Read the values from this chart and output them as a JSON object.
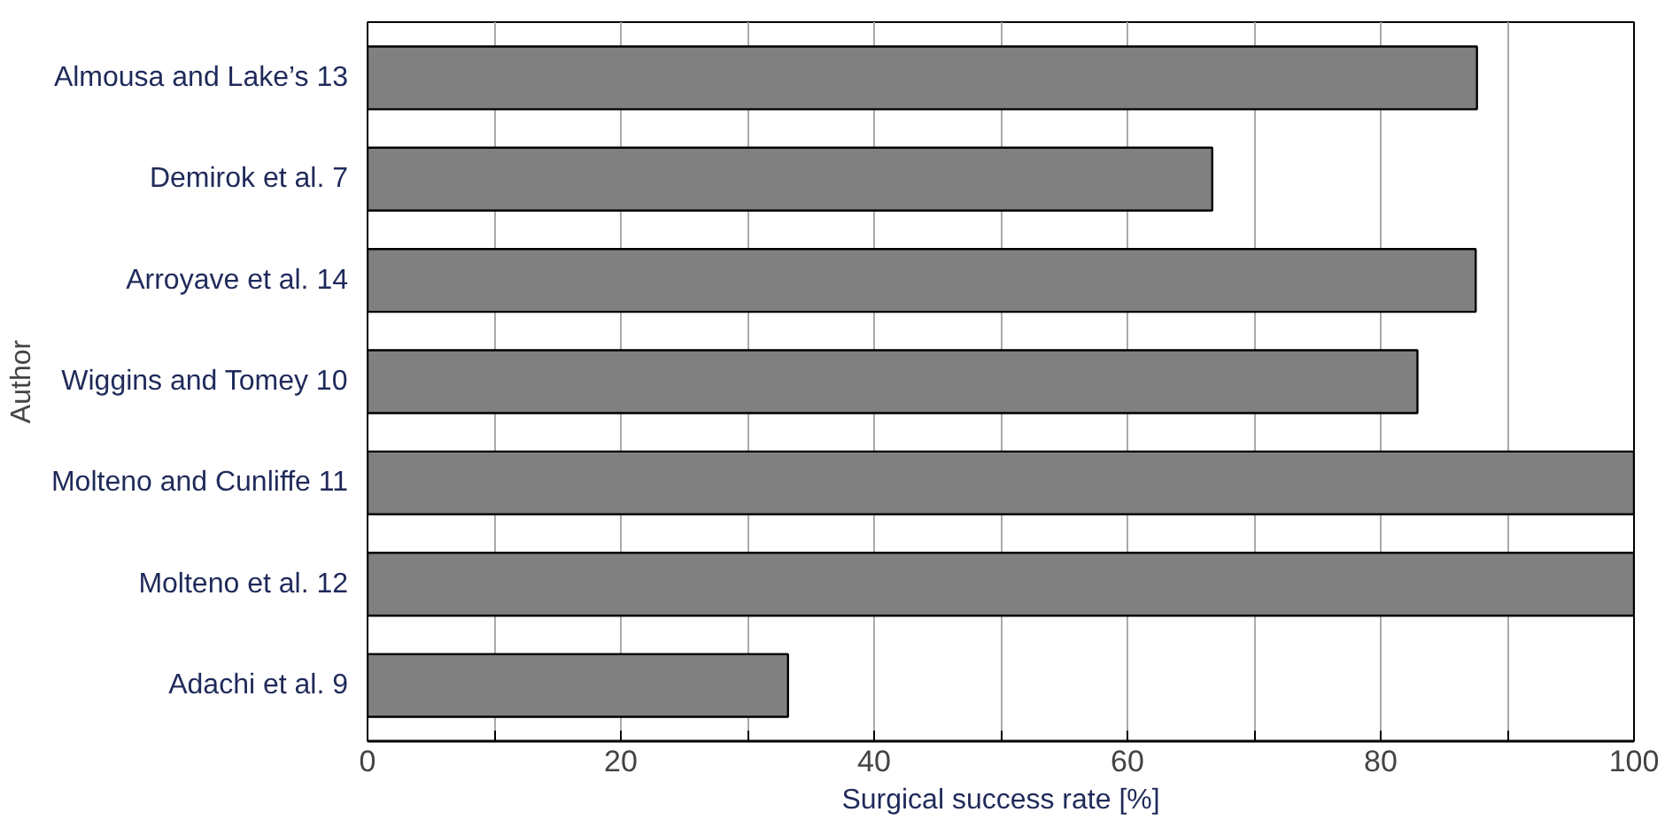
{
  "chart_data": {
    "type": "bar",
    "orientation": "horizontal",
    "categories": [
      "Almousa and Lake’s 13",
      "Demirok et al. 7",
      "Arroyave et al. 14",
      "Wiggins and Tomey 10",
      "Molteno and Cunliffe 11",
      "Molteno et al. 12",
      "Adachi et al. 9"
    ],
    "values": [
      87.6,
      66.7,
      87.5,
      82.9,
      100,
      100,
      33.2
    ],
    "color": "#808080",
    "xlim": [
      0,
      100
    ],
    "xticks": [
      0,
      {
        "value": 10,
        "label": null
      },
      20,
      {
        "value": 30,
        "label": null
      },
      40,
      {
        "value": 50,
        "label": null
      },
      60,
      {
        "value": 70,
        "label": null
      },
      80,
      {
        "value": 90,
        "label": null
      },
      100
    ],
    "xlabel": "Surgical success rate [%]",
    "ylabel": "Author",
    "grid": "x"
  }
}
